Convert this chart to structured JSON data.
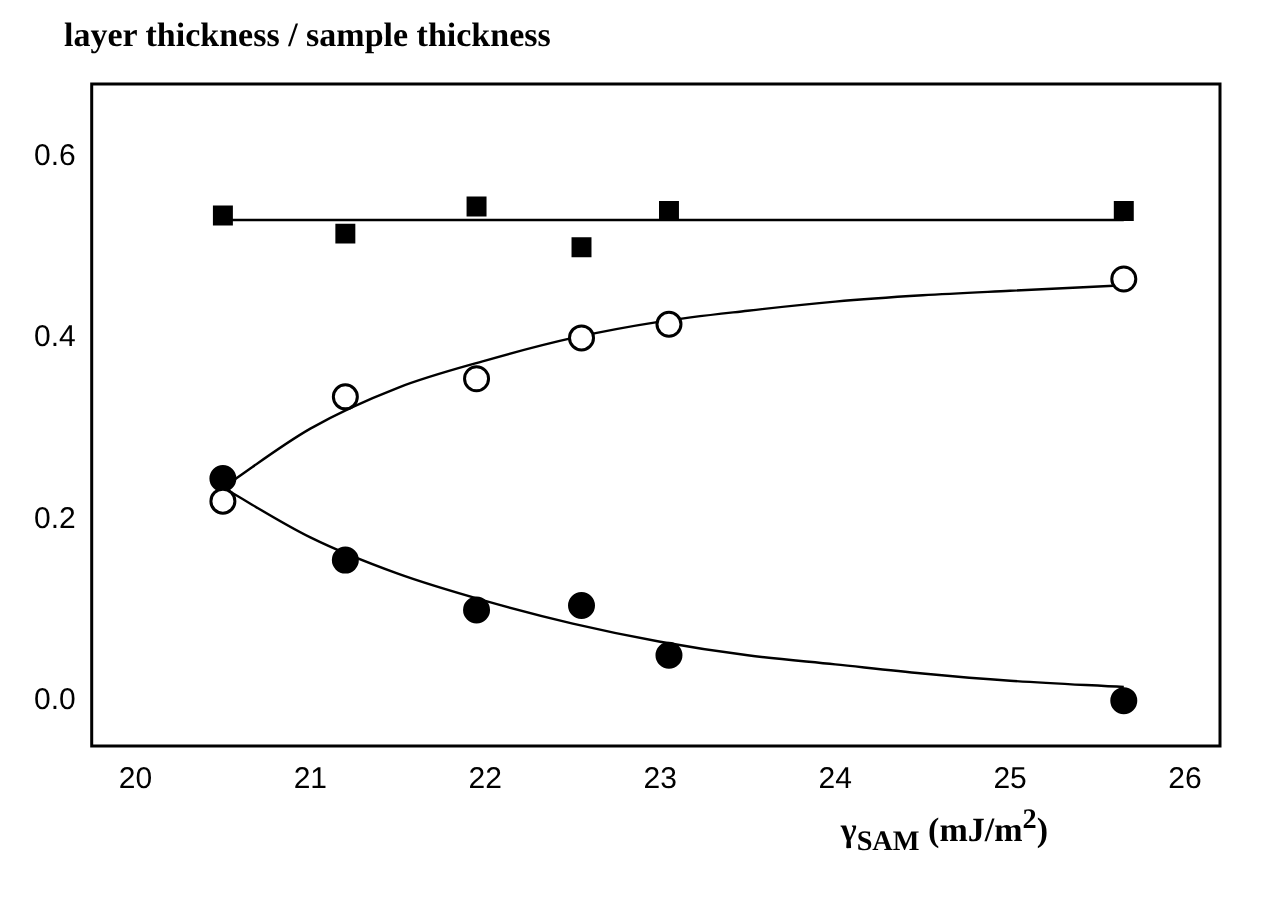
{
  "chart_data": {
    "type": "scatter",
    "ylabel": "layer thickness / sample thickness",
    "xlabel": "γ$_{SAM}$ (mJ/m$^{2}$)",
    "xlim": [
      19.75,
      26.2
    ],
    "xticks": [
      20,
      21,
      22,
      23,
      24,
      25,
      26
    ],
    "ylim": [
      -0.05,
      0.68
    ],
    "yticks": [
      {
        "value": 0,
        "label": "0.0"
      },
      {
        "value": 0.2,
        "label": "0.2"
      },
      {
        "value": 0.4,
        "label": "0.4"
      },
      {
        "value": 0.6,
        "label": "0.6"
      }
    ],
    "grid": false,
    "legend": false,
    "series": [
      {
        "type": "scatter",
        "marker": "square",
        "color": "#000000",
        "x": [
          20.5,
          21.2,
          21.95,
          22.55,
          23.05,
          25.65
        ],
        "values": [
          0.535,
          0.515,
          0.545,
          0.5,
          0.54,
          0.54
        ]
      },
      {
        "type": "scatter",
        "marker": "circle",
        "color": "#ffffff",
        "x": [
          20.5,
          21.2,
          21.95,
          22.55,
          23.05,
          25.65
        ],
        "values": [
          0.22,
          0.335,
          0.355,
          0.4,
          0.415,
          0.465
        ]
      },
      {
        "type": "scatter",
        "marker": "circle",
        "color": "#000000",
        "x": [
          20.5,
          21.2,
          21.95,
          22.55,
          23.05,
          25.65
        ],
        "values": [
          0.245,
          0.155,
          0.1,
          0.105,
          0.05,
          0.0
        ]
      },
      {
        "type": "line",
        "marker": "none",
        "color": "#000000",
        "x": [
          20.5,
          25.65
        ],
        "values": [
          0.53,
          0.53
        ]
      },
      {
        "type": "line",
        "marker": "none",
        "color": "#000000",
        "x": [
          20.5,
          21,
          21.5,
          22,
          22.5,
          23,
          23.5,
          24,
          24.5,
          25,
          25.65
        ],
        "values": [
          0.235,
          0.3,
          0.345,
          0.375,
          0.4,
          0.418,
          0.43,
          0.44,
          0.447,
          0.452,
          0.458
        ]
      },
      {
        "type": "line",
        "marker": "none",
        "color": "#000000",
        "x": [
          20.5,
          21,
          21.5,
          22,
          22.5,
          23,
          23.5,
          24,
          24.5,
          25,
          25.65
        ],
        "values": [
          0.235,
          0.18,
          0.14,
          0.11,
          0.085,
          0.065,
          0.05,
          0.04,
          0.03,
          0.022,
          0.015
        ]
      }
    ]
  }
}
